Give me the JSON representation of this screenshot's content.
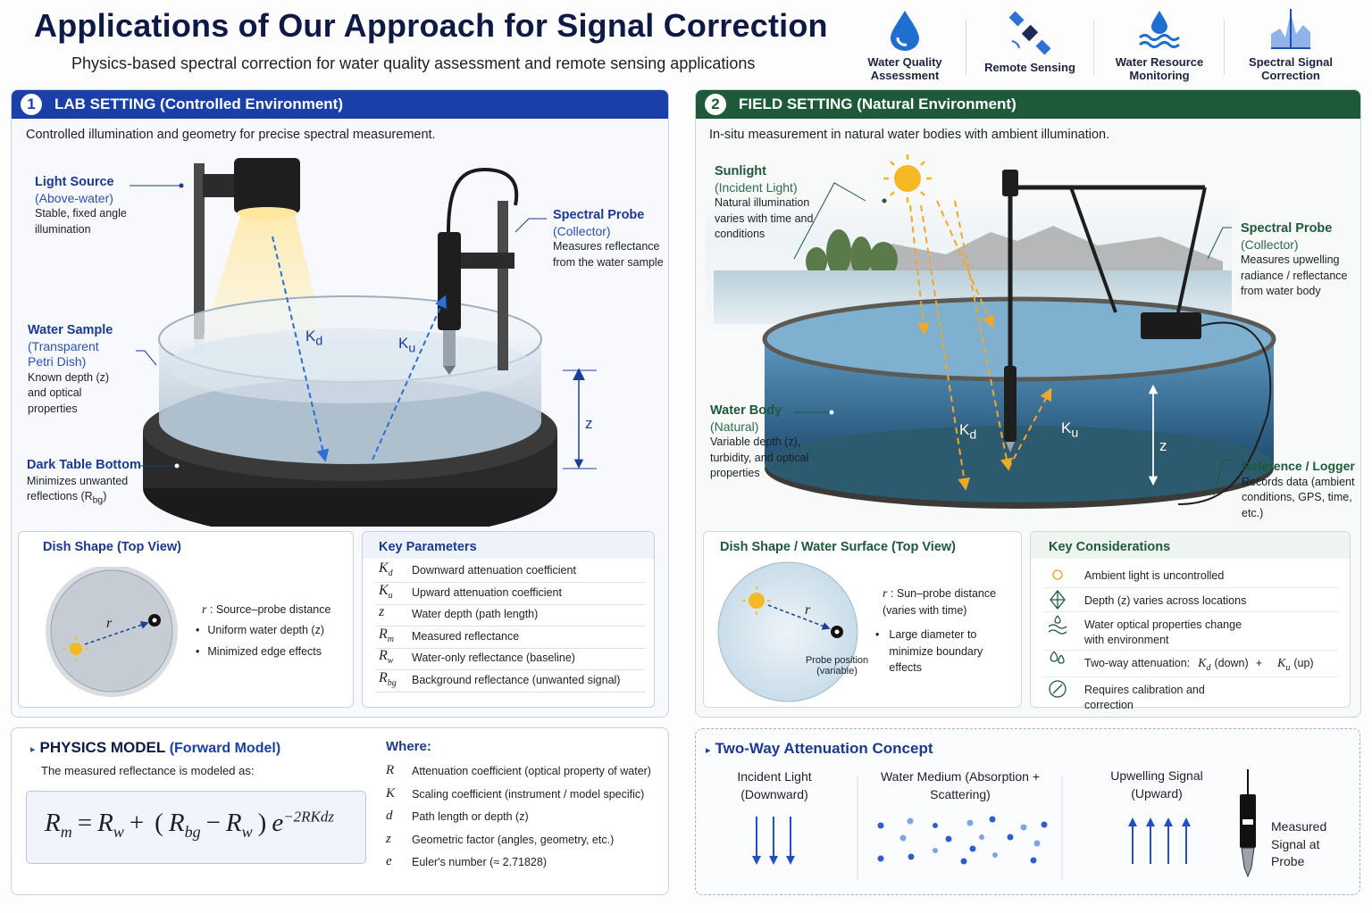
{
  "header": {
    "title": "Applications of Our Approach for Signal Correction",
    "subtitle": "Physics-based spectral correction for water quality assessment and remote sensing applications",
    "icons": [
      "Water Quality Assessment",
      "Remote Sensing",
      "Water Resource Monitoring",
      "Spectral Signal Correction"
    ]
  },
  "lab": {
    "number": "1",
    "title": "LAB SETTING (Controlled Environment)",
    "description": "Controlled illumination and geometry for precise spectral measurement.",
    "light_source": {
      "title": "Light Source",
      "subtitle": "(Above-water)",
      "text": "Stable, fixed angle illumination"
    },
    "spectral_probe": {
      "title": "Spectral Probe",
      "subtitle": "(Collector)",
      "text": "Measures reflectance from the water sample"
    },
    "water_sample": {
      "title": "Water Sample",
      "subtitle": "(Transparent Petri Dish)",
      "text": "Known depth (z) and optical properties"
    },
    "dark_table": {
      "title": "Dark Table Bottom",
      "text": "Minimizes unwanted reflections (R",
      "sub": "bg",
      "text_end": ")"
    },
    "kd": {
      "symbol": "K",
      "sub": "d"
    },
    "ku": {
      "symbol": "K",
      "sub": "u"
    },
    "z": "z",
    "dish_shape": {
      "title": "Dish Shape (Top View)",
      "diagram_label": "r",
      "legend_symbol": "r",
      "legend_text": ": Source–probe distance",
      "bullets": [
        "Uniform water depth (z)",
        "Minimized edge effects"
      ]
    },
    "key_parameters": {
      "title": "Key Parameters",
      "rows": [
        {
          "symbol": "K",
          "sub": "d",
          "text": "Downward attenuation coefficient"
        },
        {
          "symbol": "K",
          "sub": "u",
          "text": "Upward attenuation coefficient"
        },
        {
          "symbol": "z",
          "text": "Water depth (path length)"
        },
        {
          "symbol": "R",
          "sub": "m",
          "text": "Measured reflectance"
        },
        {
          "symbol": "R",
          "sub": "w",
          "text": "Water-only reflectance (baseline)"
        },
        {
          "symbol": "R",
          "sub": "bg",
          "text": "Background reflectance (unwanted signal)"
        }
      ]
    }
  },
  "field": {
    "number": "2",
    "title": "FIELD SETTING (Natural Environment)",
    "description": "In-situ measurement in natural water bodies with ambient illumination.",
    "sunlight": {
      "title": "Sunlight",
      "subtitle": "(Incident Light)",
      "text": "Natural illumination varies with time and conditions"
    },
    "spectral_probe": {
      "title": "Spectral Probe",
      "subtitle": "(Collector)",
      "text": "Measures upwelling radiance / reflectance from water body"
    },
    "water_body": {
      "title": "Water Body",
      "subtitle": "(Natural)",
      "text": "Variable depth (z), turbidity, and optical properties"
    },
    "reference_logger": {
      "title": "Reference / Logger",
      "text": "Records data (ambient conditions, GPS, time, etc.)"
    },
    "kd": {
      "symbol": "K",
      "sub": "d"
    },
    "ku": {
      "symbol": "K",
      "sub": "u"
    },
    "z": "z",
    "dish_shape": {
      "title": "Dish Shape / Water Surface (Top View)",
      "diagram_label": "r",
      "legend_symbol": "r",
      "legend_text": ": Sun–probe distance (varies with time)",
      "probe_label": "Probe position (variable)",
      "bullets": [
        "Large diameter to minimize boundary effects"
      ]
    },
    "key_considerations": {
      "title": "Key Considerations",
      "items": [
        {
          "text": "Ambient light is uncontrolled"
        },
        {
          "text": "Depth (z) varies across locations"
        },
        {
          "text": "Water optical properties change with environment"
        },
        {
          "text": "Two-way attenuation:",
          "terms": [
            {
              "symbol": "K",
              "sub": "d",
              "note": "(down)"
            },
            {
              "symbol": "K",
              "sub": "u",
              "note": "(up)"
            }
          ],
          "joiner": "+"
        },
        {
          "text": "Requires calibration and correction"
        }
      ]
    }
  },
  "physics": {
    "title": "PHYSICS MODEL",
    "title_note": "(Forward Model)",
    "intro": "The measured reflectance is modeled as:",
    "formula": [
      {
        "t": "R",
        "sub": "m"
      },
      {
        "t": "="
      },
      {
        "t": "R",
        "sub": "w"
      },
      {
        "t": "+"
      },
      {
        "t": "("
      },
      {
        "t": "R",
        "sub": "bg"
      },
      {
        "t": "−"
      },
      {
        "t": "R",
        "sub": "w"
      },
      {
        "t": ")"
      },
      {
        "t": "e",
        "sup": "−2RKdz"
      }
    ],
    "where_title": "Where:",
    "where": [
      {
        "symbol": "R",
        "text": "Attenuation coefficient (optical property of water)"
      },
      {
        "symbol": "K",
        "text": "Scaling coefficient (instrument / model specific)"
      },
      {
        "symbol": "d",
        "text": "Path length or depth (z)"
      },
      {
        "symbol": "z",
        "text": "Geometric factor (angles, geometry, etc.)"
      },
      {
        "symbol": "e",
        "text": "Euler's number (≈ 2.71828)"
      }
    ]
  },
  "two_way": {
    "title": "Two-Way Attenuation Concept",
    "columns": [
      "Incident Light (Downward)",
      "Water Medium (Absorption + Scattering)",
      "Upwelling Signal (Upward)"
    ],
    "measured": "Measured Signal at Probe"
  }
}
